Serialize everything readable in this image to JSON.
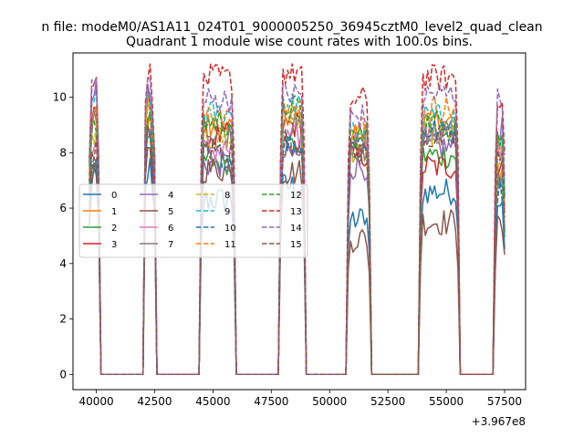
{
  "figure": {
    "suptitle": "n file: modeM0/AS1A11_024T01_9000005250_36945cztM0_level2_quad_clean",
    "title": "Quadrant 1 module wise count rates with 100.0s bins.",
    "x_offset_label": "+3.967e8"
  },
  "chart_data": {
    "type": "line",
    "title": "Quadrant 1 module wise count rates with 100.0s bins.",
    "xlabel": "",
    "ylabel": "",
    "x_offset": 396700000,
    "xlim": [
      39000,
      58400
    ],
    "ylim": [
      -0.55,
      11.6
    ],
    "x_ticks": [
      40000,
      42500,
      45000,
      47500,
      50000,
      52500,
      55000,
      57500
    ],
    "x_tick_labels": [
      "40000",
      "42500",
      "45000",
      "47500",
      "50000",
      "52500",
      "55000",
      "57500"
    ],
    "y_ticks": [
      0,
      2,
      4,
      6,
      8,
      10
    ],
    "y_tick_labels": [
      "0",
      "2",
      "4",
      "6",
      "8",
      "10"
    ],
    "grid": false,
    "legend_position": "center-left",
    "legend_columns": 4,
    "segments": [
      {
        "start": 39700,
        "end": 40100,
        "drop_end": 40200
      },
      {
        "start": 42100,
        "end": 42500,
        "drop_end": 42800
      },
      {
        "start": 44500,
        "end": 45900,
        "drop_end": 46000
      },
      {
        "start": 47900,
        "end": 48900,
        "drop_end": 49000
      },
      {
        "start": 50800,
        "end": 51700,
        "drop_end": 51800
      },
      {
        "start": 53900,
        "end": 55500,
        "drop_end": 55600
      },
      {
        "start": 57100,
        "end": 57500,
        "drop_end": 57500
      }
    ],
    "series": [
      {
        "name": "0",
        "color": "#1f77b4",
        "dash": false,
        "level": [
          7.2,
          7.4,
          6.3,
          6.8,
          5.6,
          6.6,
          6.3
        ]
      },
      {
        "name": "1",
        "color": "#ff7f0e",
        "dash": false,
        "level": [
          9.3,
          9.4,
          8.9,
          9.3,
          8.7,
          9.1,
          7.4
        ]
      },
      {
        "name": "2",
        "color": "#2ca02c",
        "dash": false,
        "level": [
          7.6,
          8.8,
          7.7,
          8.3,
          8.1,
          7.9,
          6.9
        ]
      },
      {
        "name": "3",
        "color": "#d62728",
        "dash": false,
        "level": [
          9.2,
          9.9,
          8.6,
          9.0,
          7.9,
          7.5,
          7.6
        ]
      },
      {
        "name": "4",
        "color": "#9467bd",
        "dash": false,
        "level": [
          10.3,
          10.4,
          7.6,
          7.9,
          7.5,
          8.2,
          8.8
        ]
      },
      {
        "name": "5",
        "color": "#8c564b",
        "dash": false,
        "level": [
          7.2,
          7.9,
          7.4,
          7.3,
          4.9,
          5.5,
          5.3
        ]
      },
      {
        "name": "6",
        "color": "#e377c2",
        "dash": false,
        "level": [
          8.3,
          8.7,
          8.1,
          8.5,
          8.4,
          8.7,
          8.2
        ]
      },
      {
        "name": "7",
        "color": "#7f7f7f",
        "dash": false,
        "level": [
          9.1,
          9.2,
          8.7,
          8.9,
          7.9,
          8.8,
          7.1
        ]
      },
      {
        "name": "8",
        "color": "#bcbd22",
        "dash": true,
        "level": [
          8.6,
          9.5,
          8.5,
          9.3,
          8.1,
          8.7,
          7.8
        ]
      },
      {
        "name": "9",
        "color": "#17becf",
        "dash": true,
        "level": [
          9.9,
          10.2,
          9.4,
          9.7,
          8.8,
          9.3,
          8.4
        ]
      },
      {
        "name": "10",
        "color": "#1f77b4",
        "dash": true,
        "level": [
          7.7,
          8.5,
          7.9,
          8.3,
          8.4,
          8.8,
          6.7
        ]
      },
      {
        "name": "11",
        "color": "#ff7f0e",
        "dash": true,
        "level": [
          9.4,
          9.7,
          9.3,
          9.7,
          8.9,
          9.6,
          8.2
        ]
      },
      {
        "name": "12",
        "color": "#2ca02c",
        "dash": true,
        "level": [
          9.2,
          9.4,
          9.1,
          9.6,
          8.6,
          9.1,
          8.5
        ]
      },
      {
        "name": "13",
        "color": "#d62728",
        "dash": true,
        "level": [
          10.7,
          10.9,
          10.7,
          10.9,
          9.9,
          10.7,
          10.1
        ]
      },
      {
        "name": "14",
        "color": "#9467bd",
        "dash": true,
        "level": [
          10.5,
          10.5,
          9.9,
          10.1,
          9.3,
          10.1,
          9.9
        ]
      },
      {
        "name": "15",
        "color": "#8c564b",
        "dash": true,
        "level": [
          8.2,
          8.6,
          8.1,
          8.4,
          8.0,
          8.5,
          7.7
        ]
      }
    ]
  }
}
